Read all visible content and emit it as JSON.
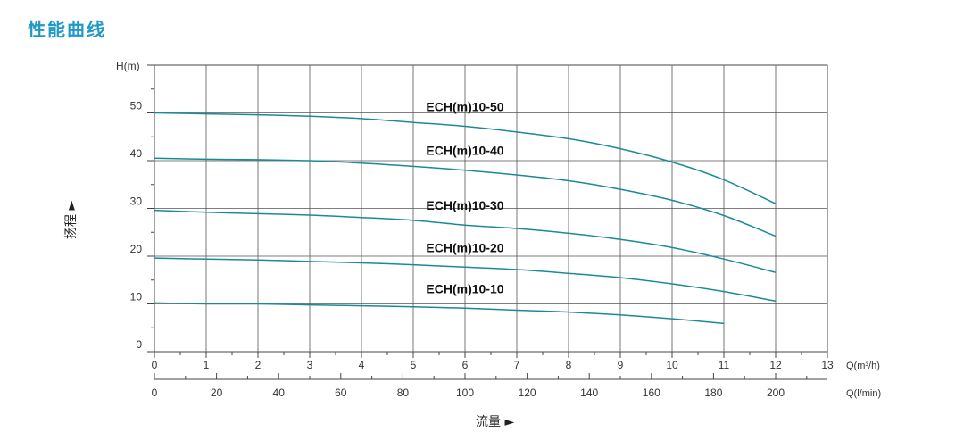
{
  "page": {
    "title": "性能曲线"
  },
  "chart_data": {
    "type": "line",
    "ylabel": "H(m)",
    "xlabel": "Q(m³/h)",
    "xlabel_secondary": "Q(l/min)",
    "axis_title_x": "流量 ►",
    "axis_title_y": "扬程 ►",
    "xlim": [
      0,
      13
    ],
    "ylim": [
      0,
      60
    ],
    "x_ticks": [
      0,
      1,
      2,
      3,
      4,
      5,
      6,
      7,
      8,
      9,
      10,
      11,
      12,
      13
    ],
    "y_ticks": [
      0,
      10,
      20,
      30,
      40,
      50
    ],
    "x_ticks_secondary": [
      0,
      20,
      40,
      60,
      80,
      100,
      120,
      140,
      160,
      180,
      200
    ],
    "grid": true,
    "line_color": "#1a8a99",
    "series": [
      {
        "name": "ECH(m)10-50",
        "x": [
          0,
          1,
          2,
          3,
          4,
          5,
          6,
          7,
          8,
          9,
          10,
          11,
          12
        ],
        "values": [
          50.0,
          49.8,
          49.6,
          49.3,
          48.8,
          48.0,
          47.2,
          46.0,
          44.6,
          42.5,
          39.7,
          36.0,
          31.0
        ]
      },
      {
        "name": "ECH(m)10-40",
        "x": [
          0,
          1,
          2,
          3,
          4,
          5,
          6,
          7,
          8,
          9,
          10,
          11,
          12
        ],
        "values": [
          40.5,
          40.3,
          40.2,
          40.0,
          39.5,
          38.8,
          38.0,
          37.0,
          35.8,
          34.0,
          31.7,
          28.5,
          24.2
        ]
      },
      {
        "name": "ECH(m)10-30",
        "x": [
          0,
          1,
          2,
          3,
          4,
          5,
          6,
          7,
          8,
          9,
          10,
          11,
          12
        ],
        "values": [
          29.6,
          29.2,
          28.9,
          28.6,
          28.1,
          27.5,
          26.5,
          25.8,
          24.8,
          23.5,
          21.8,
          19.4,
          16.6
        ]
      },
      {
        "name": "ECH(m)10-20",
        "x": [
          0,
          1,
          2,
          3,
          4,
          5,
          6,
          7,
          8,
          9,
          10,
          11,
          12
        ],
        "values": [
          19.6,
          19.4,
          19.2,
          18.9,
          18.6,
          18.2,
          17.7,
          17.2,
          16.4,
          15.5,
          14.2,
          12.6,
          10.6
        ]
      },
      {
        "name": "ECH(m)10-10",
        "x": [
          0,
          1,
          2,
          3,
          4,
          5,
          6,
          7,
          8,
          9,
          10,
          11
        ],
        "values": [
          10.2,
          10.0,
          10.0,
          9.8,
          9.6,
          9.4,
          9.1,
          8.7,
          8.3,
          7.7,
          6.9,
          5.9
        ]
      }
    ]
  }
}
